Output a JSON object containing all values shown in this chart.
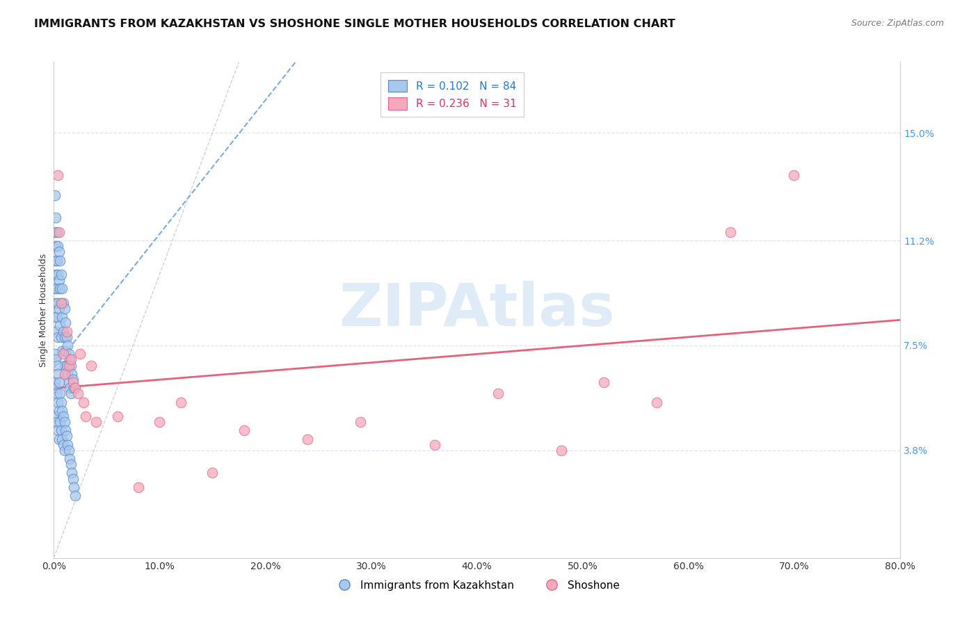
{
  "title": "IMMIGRANTS FROM KAZAKHSTAN VS SHOSHONE SINGLE MOTHER HOUSEHOLDS CORRELATION CHART",
  "source": "Source: ZipAtlas.com",
  "ylabel": "Single Mother Households",
  "watermark": "ZIPAtlas",
  "xlim": [
    0.0,
    0.8
  ],
  "ylim": [
    0.0,
    0.175
  ],
  "xticks": [
    0.0,
    0.1,
    0.2,
    0.3,
    0.4,
    0.5,
    0.6,
    0.7,
    0.8
  ],
  "xticklabels": [
    "0.0%",
    "10.0%",
    "20.0%",
    "30.0%",
    "40.0%",
    "50.0%",
    "60.0%",
    "70.0%",
    "80.0%"
  ],
  "ytick_positions": [
    0.038,
    0.075,
    0.112,
    0.15
  ],
  "ytick_labels": [
    "3.8%",
    "7.5%",
    "11.2%",
    "15.0%"
  ],
  "blue_R": 0.102,
  "blue_N": 84,
  "pink_R": 0.236,
  "pink_N": 31,
  "blue_color": "#A8C8EC",
  "pink_color": "#F4AABC",
  "blue_edge_color": "#5588CC",
  "pink_edge_color": "#E86688",
  "blue_line_color": "#7AAAE0",
  "pink_line_color": "#E8607A",
  "legend_text_blue": "R = 0.102   N = 84",
  "legend_text_pink": "R = 0.236   N = 31",
  "legend_color_blue": "#2277DD",
  "legend_color_pink": "#DD3366",
  "legend_label_blue": "Immigrants from Kazakhstan",
  "legend_label_pink": "Shoshone",
  "ref_line_color": "#BBBBDD",
  "grid_color": "#DDDDEE",
  "blue_x": [
    0.001,
    0.001,
    0.001,
    0.001,
    0.001,
    0.002,
    0.002,
    0.002,
    0.002,
    0.002,
    0.003,
    0.003,
    0.003,
    0.003,
    0.004,
    0.004,
    0.004,
    0.004,
    0.005,
    0.005,
    0.005,
    0.006,
    0.006,
    0.006,
    0.007,
    0.007,
    0.007,
    0.008,
    0.008,
    0.008,
    0.009,
    0.009,
    0.01,
    0.01,
    0.01,
    0.011,
    0.011,
    0.012,
    0.012,
    0.013,
    0.013,
    0.014,
    0.014,
    0.015,
    0.015,
    0.016,
    0.016,
    0.017,
    0.018,
    0.019,
    0.001,
    0.001,
    0.002,
    0.002,
    0.002,
    0.003,
    0.003,
    0.003,
    0.004,
    0.004,
    0.004,
    0.005,
    0.005,
    0.005,
    0.006,
    0.006,
    0.007,
    0.007,
    0.008,
    0.008,
    0.009,
    0.009,
    0.01,
    0.01,
    0.011,
    0.012,
    0.013,
    0.014,
    0.015,
    0.016,
    0.017,
    0.018,
    0.019,
    0.02
  ],
  "blue_y": [
    0.128,
    0.115,
    0.105,
    0.095,
    0.085,
    0.12,
    0.11,
    0.1,
    0.09,
    0.08,
    0.115,
    0.105,
    0.095,
    0.085,
    0.11,
    0.1,
    0.09,
    0.078,
    0.108,
    0.098,
    0.088,
    0.105,
    0.095,
    0.082,
    0.1,
    0.09,
    0.078,
    0.095,
    0.085,
    0.073,
    0.09,
    0.08,
    0.088,
    0.078,
    0.068,
    0.083,
    0.073,
    0.078,
    0.068,
    0.075,
    0.065,
    0.072,
    0.062,
    0.07,
    0.06,
    0.068,
    0.058,
    0.065,
    0.063,
    0.06,
    0.072,
    0.062,
    0.07,
    0.06,
    0.05,
    0.068,
    0.058,
    0.048,
    0.065,
    0.055,
    0.045,
    0.062,
    0.052,
    0.042,
    0.058,
    0.048,
    0.055,
    0.045,
    0.052,
    0.042,
    0.05,
    0.04,
    0.048,
    0.038,
    0.045,
    0.043,
    0.04,
    0.038,
    0.035,
    0.033,
    0.03,
    0.028,
    0.025,
    0.022
  ],
  "pink_x": [
    0.004,
    0.005,
    0.007,
    0.009,
    0.01,
    0.012,
    0.014,
    0.016,
    0.018,
    0.02,
    0.023,
    0.025,
    0.028,
    0.03,
    0.035,
    0.04,
    0.06,
    0.08,
    0.1,
    0.12,
    0.15,
    0.18,
    0.24,
    0.29,
    0.36,
    0.42,
    0.48,
    0.52,
    0.57,
    0.64,
    0.7
  ],
  "pink_y": [
    0.135,
    0.115,
    0.09,
    0.072,
    0.065,
    0.08,
    0.068,
    0.07,
    0.062,
    0.06,
    0.058,
    0.072,
    0.055,
    0.05,
    0.068,
    0.048,
    0.05,
    0.025,
    0.048,
    0.055,
    0.03,
    0.045,
    0.042,
    0.048,
    0.04,
    0.058,
    0.038,
    0.062,
    0.055,
    0.115,
    0.135
  ]
}
